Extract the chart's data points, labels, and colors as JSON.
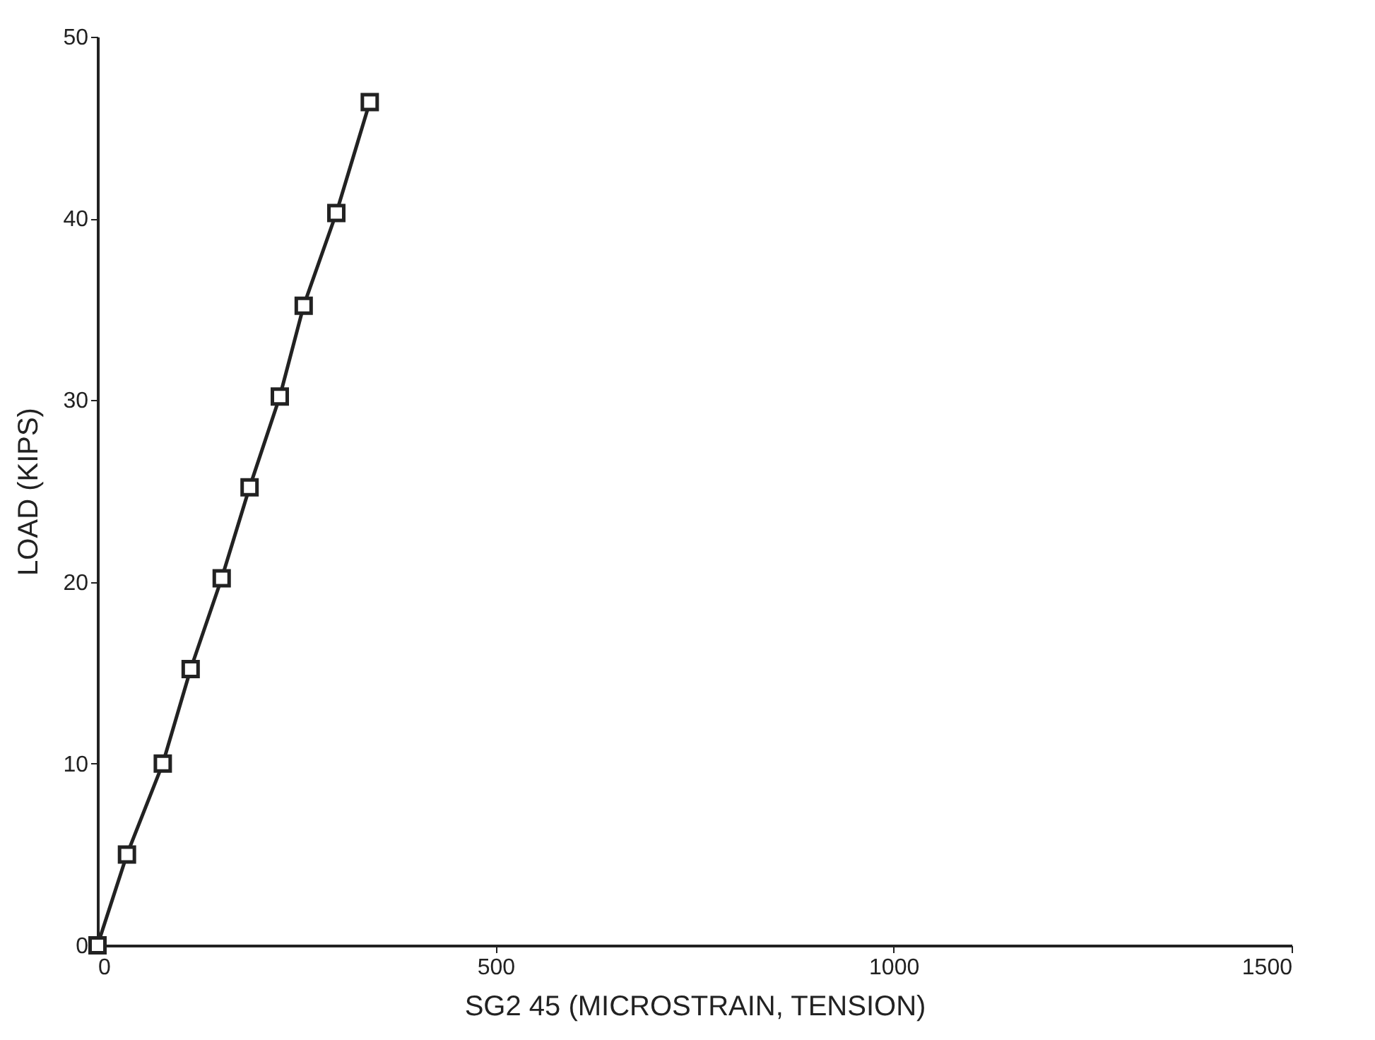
{
  "chart_data": {
    "type": "line",
    "xlabel": "SG2 45 (MICROSTRAIN, TENSION)",
    "ylabel": "LOAD (KIPS)",
    "x": [
      0,
      37,
      82,
      117,
      156,
      191,
      229,
      259,
      300,
      342
    ],
    "series": [
      {
        "color": "#222222",
        "values": [
          0,
          5,
          10,
          15.2,
          20.2,
          25.2,
          30.2,
          35.2,
          40.3,
          46.4
        ]
      }
    ],
    "xlim": [
      0,
      1500
    ],
    "xticks": [
      0,
      500,
      1000,
      1500
    ],
    "ylim": [
      0,
      50
    ],
    "yticks": [
      0,
      10,
      20,
      30,
      40,
      50
    ],
    "grid": false,
    "marker": "square",
    "line_style": "solid"
  }
}
